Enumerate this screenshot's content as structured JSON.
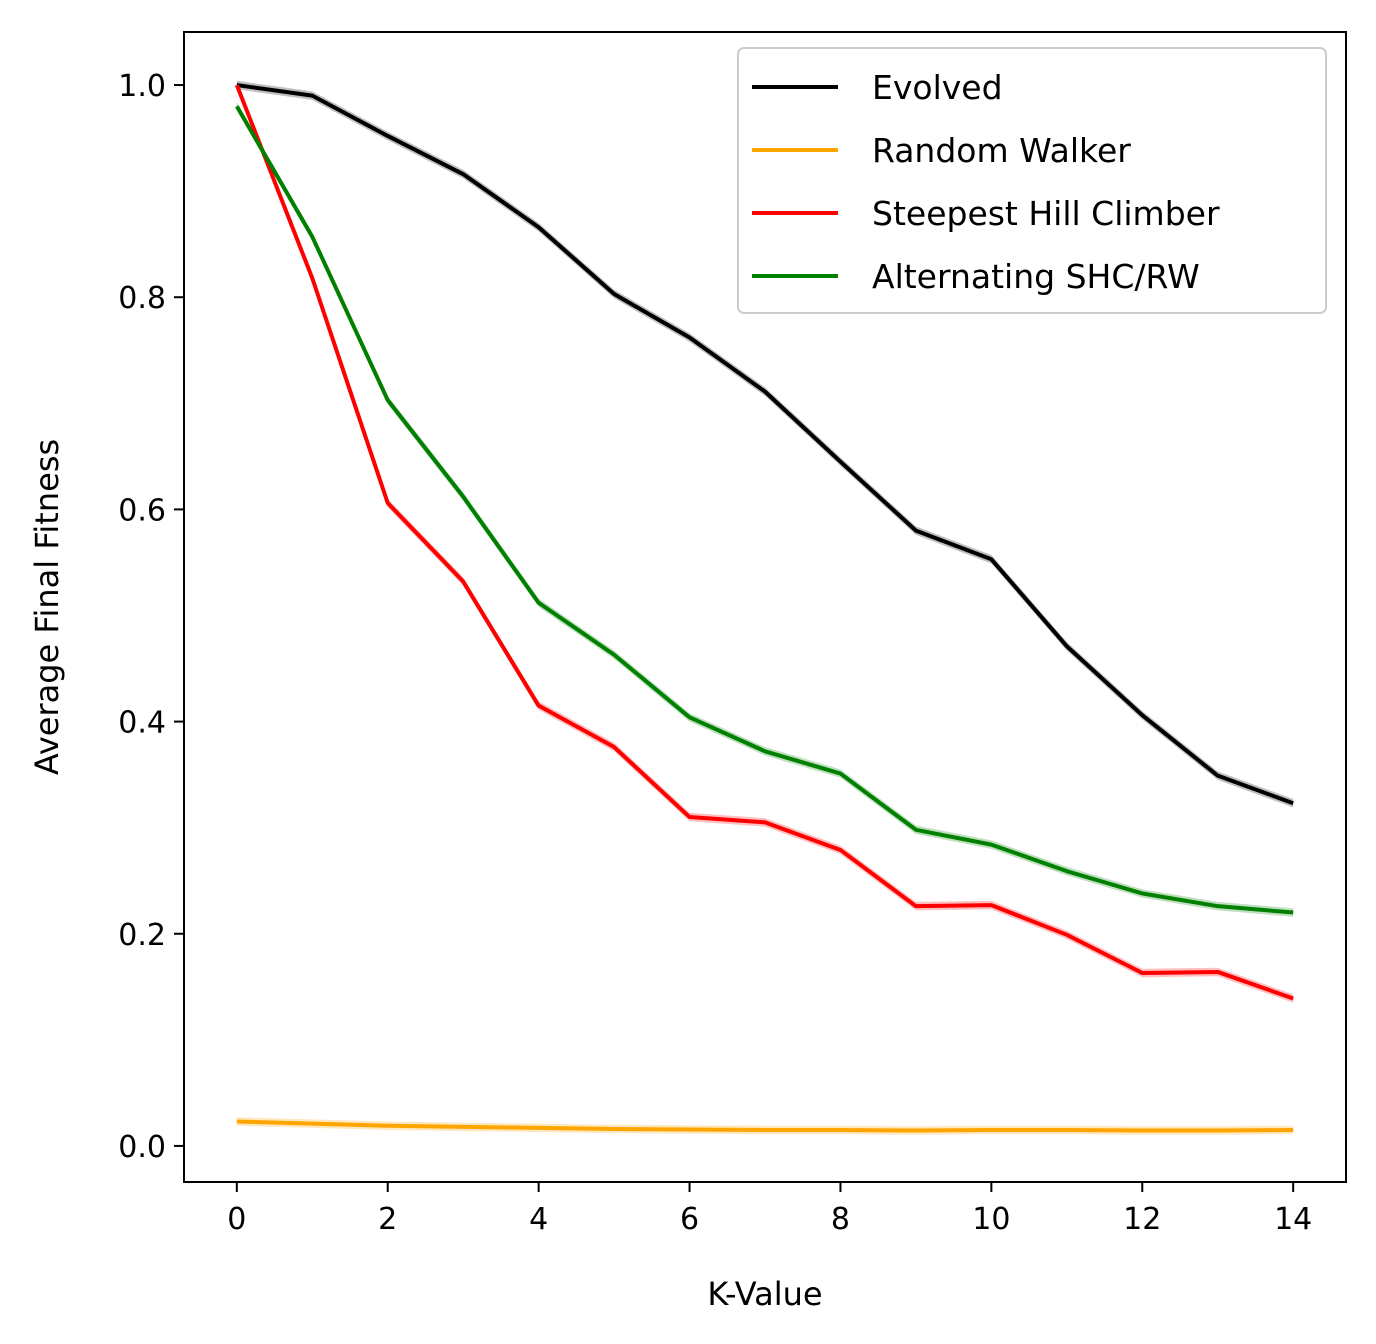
{
  "chart_data": {
    "type": "line",
    "title": "",
    "xlabel": "K-Value",
    "ylabel": "Average Final Fitness",
    "xlim": [
      -0.7,
      14.7
    ],
    "ylim": [
      -0.034,
      1.05
    ],
    "x_ticks": [
      0,
      2,
      4,
      6,
      8,
      10,
      12,
      14
    ],
    "y_ticks": [
      0.0,
      0.2,
      0.4,
      0.6,
      0.8,
      1.0
    ],
    "y_tick_labels": [
      "0.0",
      "0.2",
      "0.4",
      "0.6",
      "0.8",
      "1.0"
    ],
    "grid": false,
    "legend_position": "top-right",
    "x": [
      0,
      1,
      2,
      3,
      4,
      5,
      6,
      7,
      8,
      9,
      10,
      11,
      12,
      13,
      14
    ],
    "series": [
      {
        "name": "Evolved",
        "color": "#000000",
        "values": [
          1.0,
          0.99,
          0.952,
          0.916,
          0.866,
          0.803,
          0.762,
          0.711,
          0.645,
          0.58,
          0.553,
          0.471,
          0.406,
          0.349,
          0.323
        ]
      },
      {
        "name": "Random Walker",
        "color": "#ffa500",
        "values": [
          0.023,
          0.021,
          0.019,
          0.018,
          0.017,
          0.016,
          0.0155,
          0.015,
          0.015,
          0.0145,
          0.015,
          0.015,
          0.0145,
          0.0145,
          0.015
        ]
      },
      {
        "name": "Steepest Hill Climber",
        "color": "#ff0000",
        "values": [
          1.0,
          0.818,
          0.606,
          0.532,
          0.415,
          0.376,
          0.31,
          0.305,
          0.279,
          0.226,
          0.227,
          0.199,
          0.163,
          0.164,
          0.139
        ]
      },
      {
        "name": "Alternating SHC/RW",
        "color": "#008000",
        "values": [
          0.98,
          0.857,
          0.703,
          0.612,
          0.512,
          0.463,
          0.404,
          0.372,
          0.351,
          0.298,
          0.284,
          0.259,
          0.238,
          0.226,
          0.22
        ]
      }
    ]
  }
}
